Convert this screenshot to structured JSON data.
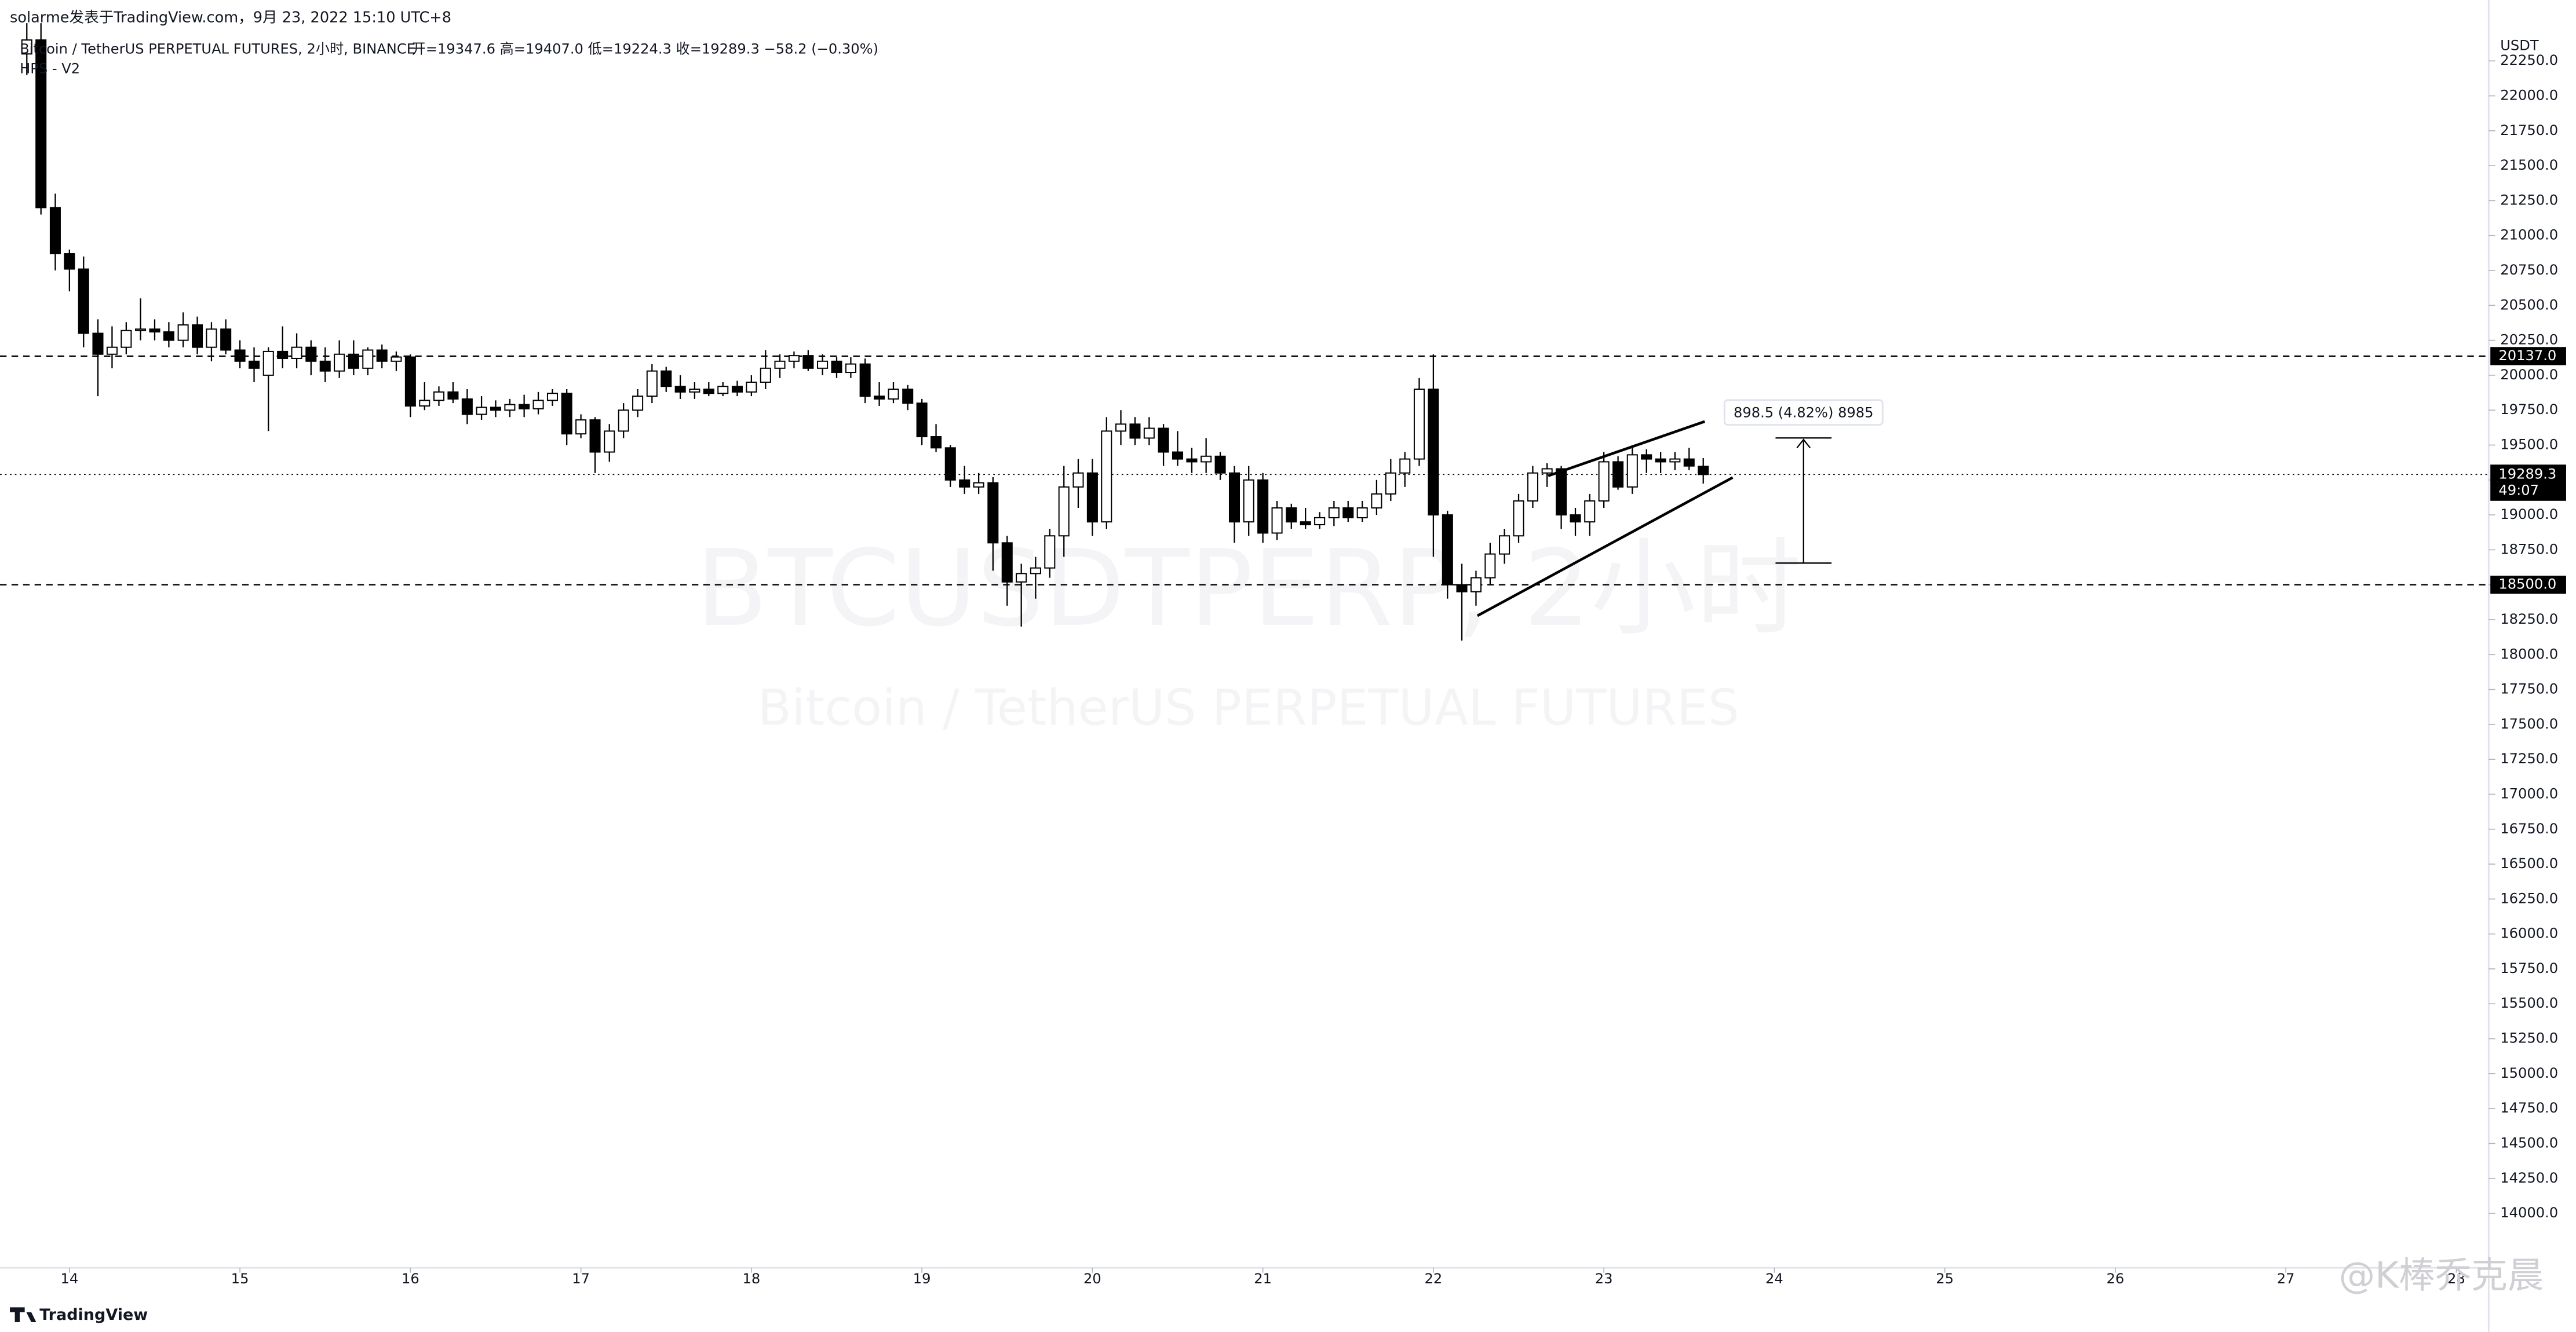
{
  "header": {
    "author": "solarme发表于TradingView.com，9月 23, 2022 15:10 UTC+8",
    "symbol": "Bitcoin / TetherUS PERPETUAL FUTURES, 2小时, BINANCE",
    "ohlc_legend": "开=19347.6  高=19407.0  低=19224.3  收=19289.3  −58.2 (−0.30%)",
    "indicator": "HPS - V2"
  },
  "watermark": {
    "symbol": "BTCUSDTPERP, 2小时",
    "name": "Bitcoin / TetherUS PERPETUAL FUTURES",
    "weibo": "@K棒乔克晨"
  },
  "brand": "TradingView",
  "chart_data": {
    "type": "candlestick",
    "unit": "USDT",
    "x": [
      13.75,
      13.833,
      13.917,
      14,
      14.083,
      14.167,
      14.25,
      14.333,
      14.417,
      14.5,
      14.583,
      14.667,
      14.75,
      14.833,
      14.917,
      15,
      15.083,
      15.167,
      15.25,
      15.333,
      15.417,
      15.5,
      15.583,
      15.667,
      15.75,
      15.833,
      15.917,
      16,
      16.083,
      16.167,
      16.25,
      16.333,
      16.417,
      16.5,
      16.583,
      16.667,
      16.75,
      16.833,
      16.917,
      17,
      17.083,
      17.167,
      17.25,
      17.333,
      17.417,
      17.5,
      17.583,
      17.667,
      17.75,
      17.833,
      17.917,
      18,
      18.083,
      18.167,
      18.25,
      18.333,
      18.417,
      18.5,
      18.583,
      18.667,
      18.75,
      18.833,
      18.917,
      19,
      19.083,
      19.167,
      19.25,
      19.333,
      19.417,
      19.5,
      19.583,
      19.667,
      19.75,
      19.833,
      19.917,
      20,
      20.083,
      20.167,
      20.25,
      20.333,
      20.417,
      20.5,
      20.583,
      20.667,
      20.75,
      20.833,
      20.917,
      21,
      21.083,
      21.167,
      21.25,
      21.333,
      21.417,
      21.5,
      21.583,
      21.667,
      21.75,
      21.833,
      21.917,
      22,
      22.083,
      22.167,
      22.25,
      22.333,
      22.417,
      22.5,
      22.583,
      22.667,
      22.75,
      22.833,
      22.917,
      23,
      23.083,
      23.167,
      23.25,
      23.333,
      23.417,
      23.5,
      23.583
    ],
    "open": [
      22300,
      22400,
      21200,
      20870,
      20760,
      20300,
      20150,
      20200,
      20320,
      20330,
      20310,
      20250,
      20360,
      20200,
      20330,
      20180,
      20100,
      20000,
      20170,
      20120,
      20200,
      20100,
      20030,
      20150,
      20050,
      20180,
      20100,
      20130,
      19780,
      19820,
      19880,
      19830,
      19720,
      19770,
      19750,
      19790,
      19760,
      19820,
      19870,
      19580,
      19680,
      19450,
      19600,
      19750,
      19850,
      20030,
      19920,
      19880,
      19900,
      19870,
      19920,
      19880,
      19950,
      20050,
      20100,
      20140,
      20050,
      20100,
      20020,
      20080,
      19850,
      19830,
      19900,
      19800,
      19560,
      19480,
      19250,
      19200,
      19230,
      18800,
      18520,
      18580,
      18620,
      18850,
      19200,
      19300,
      18950,
      19600,
      19650,
      19550,
      19620,
      19450,
      19400,
      19380,
      19420,
      19300,
      18950,
      19250,
      18870,
      19050,
      18950,
      18930,
      18980,
      19050,
      18980,
      19050,
      19150,
      19300,
      19400,
      19900,
      19000,
      18500,
      18450,
      18550,
      18720,
      18850,
      19100,
      19300,
      19330,
      19000,
      18950,
      19100,
      19380,
      19200,
      19430,
      19400,
      19380,
      19400,
      19347.6
    ],
    "high": [
      22520,
      22520,
      21300,
      20900,
      20850,
      20400,
      20350,
      20380,
      20550,
      20400,
      20380,
      20450,
      20420,
      20380,
      20400,
      20250,
      20200,
      20200,
      20350,
      20300,
      20250,
      20200,
      20250,
      20250,
      20200,
      20220,
      20170,
      20150,
      19950,
      19920,
      19950,
      19900,
      19850,
      19820,
      19830,
      19860,
      19880,
      19900,
      19900,
      19720,
      19700,
      19650,
      19800,
      19900,
      20080,
      20060,
      20000,
      19950,
      19950,
      19950,
      19960,
      20000,
      20180,
      20150,
      20170,
      20180,
      20150,
      20130,
      20130,
      20120,
      19950,
      19950,
      19930,
      19830,
      19650,
      19500,
      19350,
      19300,
      19270,
      18850,
      18650,
      18700,
      18900,
      19350,
      19400,
      19400,
      19700,
      19750,
      19700,
      19700,
      19650,
      19600,
      19480,
      19550,
      19450,
      19350,
      19350,
      19300,
      19100,
      19080,
      19050,
      19020,
      19100,
      19100,
      19100,
      19250,
      19400,
      19450,
      19980,
      20150,
      19030,
      18650,
      18600,
      18800,
      18900,
      19150,
      19350,
      19370,
      19350,
      19050,
      19150,
      19450,
      19420,
      19500,
      19470,
      19450,
      19450,
      19480,
      19407
    ],
    "low": [
      22150,
      21150,
      20750,
      20600,
      20200,
      19850,
      20050,
      20150,
      20250,
      20250,
      20200,
      20200,
      20150,
      20100,
      20150,
      20050,
      19950,
      19600,
      20050,
      20050,
      20000,
      19950,
      19980,
      20000,
      20000,
      20050,
      20030,
      19700,
      19750,
      19780,
      19800,
      19650,
      19680,
      19700,
      19700,
      19700,
      19720,
      19780,
      19500,
      19550,
      19300,
      19380,
      19550,
      19700,
      19800,
      19880,
      19830,
      19830,
      19850,
      19850,
      19850,
      19850,
      19900,
      19980,
      20050,
      20030,
      20000,
      19980,
      19980,
      19800,
      19780,
      19800,
      19750,
      19500,
      19450,
      19200,
      19150,
      19150,
      18600,
      18350,
      18200,
      18400,
      18550,
      18700,
      19050,
      18850,
      18900,
      19500,
      19500,
      19500,
      19350,
      19350,
      19300,
      19300,
      19250,
      18800,
      18850,
      18800,
      18820,
      18900,
      18900,
      18900,
      18920,
      18950,
      18950,
      19000,
      19100,
      19200,
      19350,
      18700,
      18400,
      18100,
      18350,
      18500,
      18650,
      18800,
      19050,
      19200,
      18900,
      18850,
      18850,
      19050,
      19180,
      19150,
      19300,
      19300,
      19320,
      19320,
      19224.3
    ],
    "close": [
      22400,
      21200,
      20870,
      20760,
      20300,
      20150,
      20200,
      20320,
      20330,
      20310,
      20250,
      20360,
      20200,
      20330,
      20180,
      20100,
      20050,
      20170,
      20120,
      20200,
      20100,
      20030,
      20150,
      20050,
      20180,
      20100,
      20130,
      19780,
      19820,
      19880,
      19830,
      19720,
      19770,
      19750,
      19790,
      19760,
      19820,
      19870,
      19580,
      19680,
      19450,
      19600,
      19750,
      19850,
      20030,
      19920,
      19880,
      19900,
      19870,
      19920,
      19880,
      19950,
      20050,
      20100,
      20140,
      20050,
      20100,
      20020,
      20080,
      19850,
      19830,
      19900,
      19800,
      19560,
      19480,
      19250,
      19200,
      19230,
      18800,
      18520,
      18580,
      18620,
      18850,
      19200,
      19300,
      18950,
      19600,
      19650,
      19550,
      19620,
      19450,
      19400,
      19380,
      19420,
      19300,
      18950,
      19250,
      18870,
      19050,
      18950,
      18930,
      18980,
      19050,
      18980,
      19050,
      19150,
      19300,
      19400,
      19900,
      19000,
      18500,
      18450,
      18550,
      18720,
      18850,
      19100,
      19300,
      19330,
      19000,
      18950,
      19100,
      19380,
      19200,
      19430,
      19400,
      19380,
      19400,
      19350,
      19289.3
    ],
    "xlim": [
      13.67,
      28.19
    ],
    "ylim": [
      13610,
      22474
    ],
    "xticks": [
      14,
      15,
      16,
      17,
      18,
      19,
      20,
      21,
      22,
      23,
      24,
      25,
      26,
      27,
      28
    ],
    "yticks": [
      {
        "value": 14000,
        "label": "14000.0"
      },
      {
        "value": 14250,
        "label": "14250.0"
      },
      {
        "value": 14500,
        "label": "14500.0"
      },
      {
        "value": 14750,
        "label": "14750.0"
      },
      {
        "value": 15000,
        "label": "15000.0"
      },
      {
        "value": 15250,
        "label": "15250.0"
      },
      {
        "value": 15500,
        "label": "15500.0"
      },
      {
        "value": 15750,
        "label": "15750.0"
      },
      {
        "value": 16000,
        "label": "16000.0"
      },
      {
        "value": 16250,
        "label": "16250.0"
      },
      {
        "value": 16500,
        "label": "16500.0"
      },
      {
        "value": 16750,
        "label": "16750.0"
      },
      {
        "value": 17000,
        "label": "17000.0"
      },
      {
        "value": 17250,
        "label": "17250.0"
      },
      {
        "value": 17500,
        "label": "17500.0"
      },
      {
        "value": 17750,
        "label": "17750.0"
      },
      {
        "value": 18000,
        "label": "18000.0"
      },
      {
        "value": 18250,
        "label": "18250.0"
      },
      {
        "value": 18500,
        "label": "18500.0"
      },
      {
        "value": 18750,
        "label": "18750.0"
      },
      {
        "value": 19000,
        "label": "19000.0"
      },
      {
        "value": 19250,
        "label": "19250.0"
      },
      {
        "value": 19500,
        "label": "19500.0"
      },
      {
        "value": 19750,
        "label": "19750.0"
      },
      {
        "value": 20000,
        "label": "20000.0"
      },
      {
        "value": 20250,
        "label": "20250.0"
      },
      {
        "value": 20500,
        "label": "20500.0"
      },
      {
        "value": 20750,
        "label": "20750.0"
      },
      {
        "value": 21000,
        "label": "21000.0"
      },
      {
        "value": 21250,
        "label": "21250.0"
      },
      {
        "value": 21500,
        "label": "21500.0"
      },
      {
        "value": 21750,
        "label": "21750.0"
      },
      {
        "value": 22000,
        "label": "22000.0"
      },
      {
        "value": 22250,
        "label": "22250.0"
      }
    ],
    "price_lines": [
      {
        "value": 20137,
        "label": "20137.0"
      },
      {
        "value": 18500,
        "label": "18500.0"
      }
    ],
    "last_price": {
      "value": 19289.3,
      "label": "19289.3",
      "countdown": "49:07"
    },
    "measure_label": "898.5 (4.82%) 8985",
    "up_color": "#ffffff",
    "down_color": "#000000"
  }
}
